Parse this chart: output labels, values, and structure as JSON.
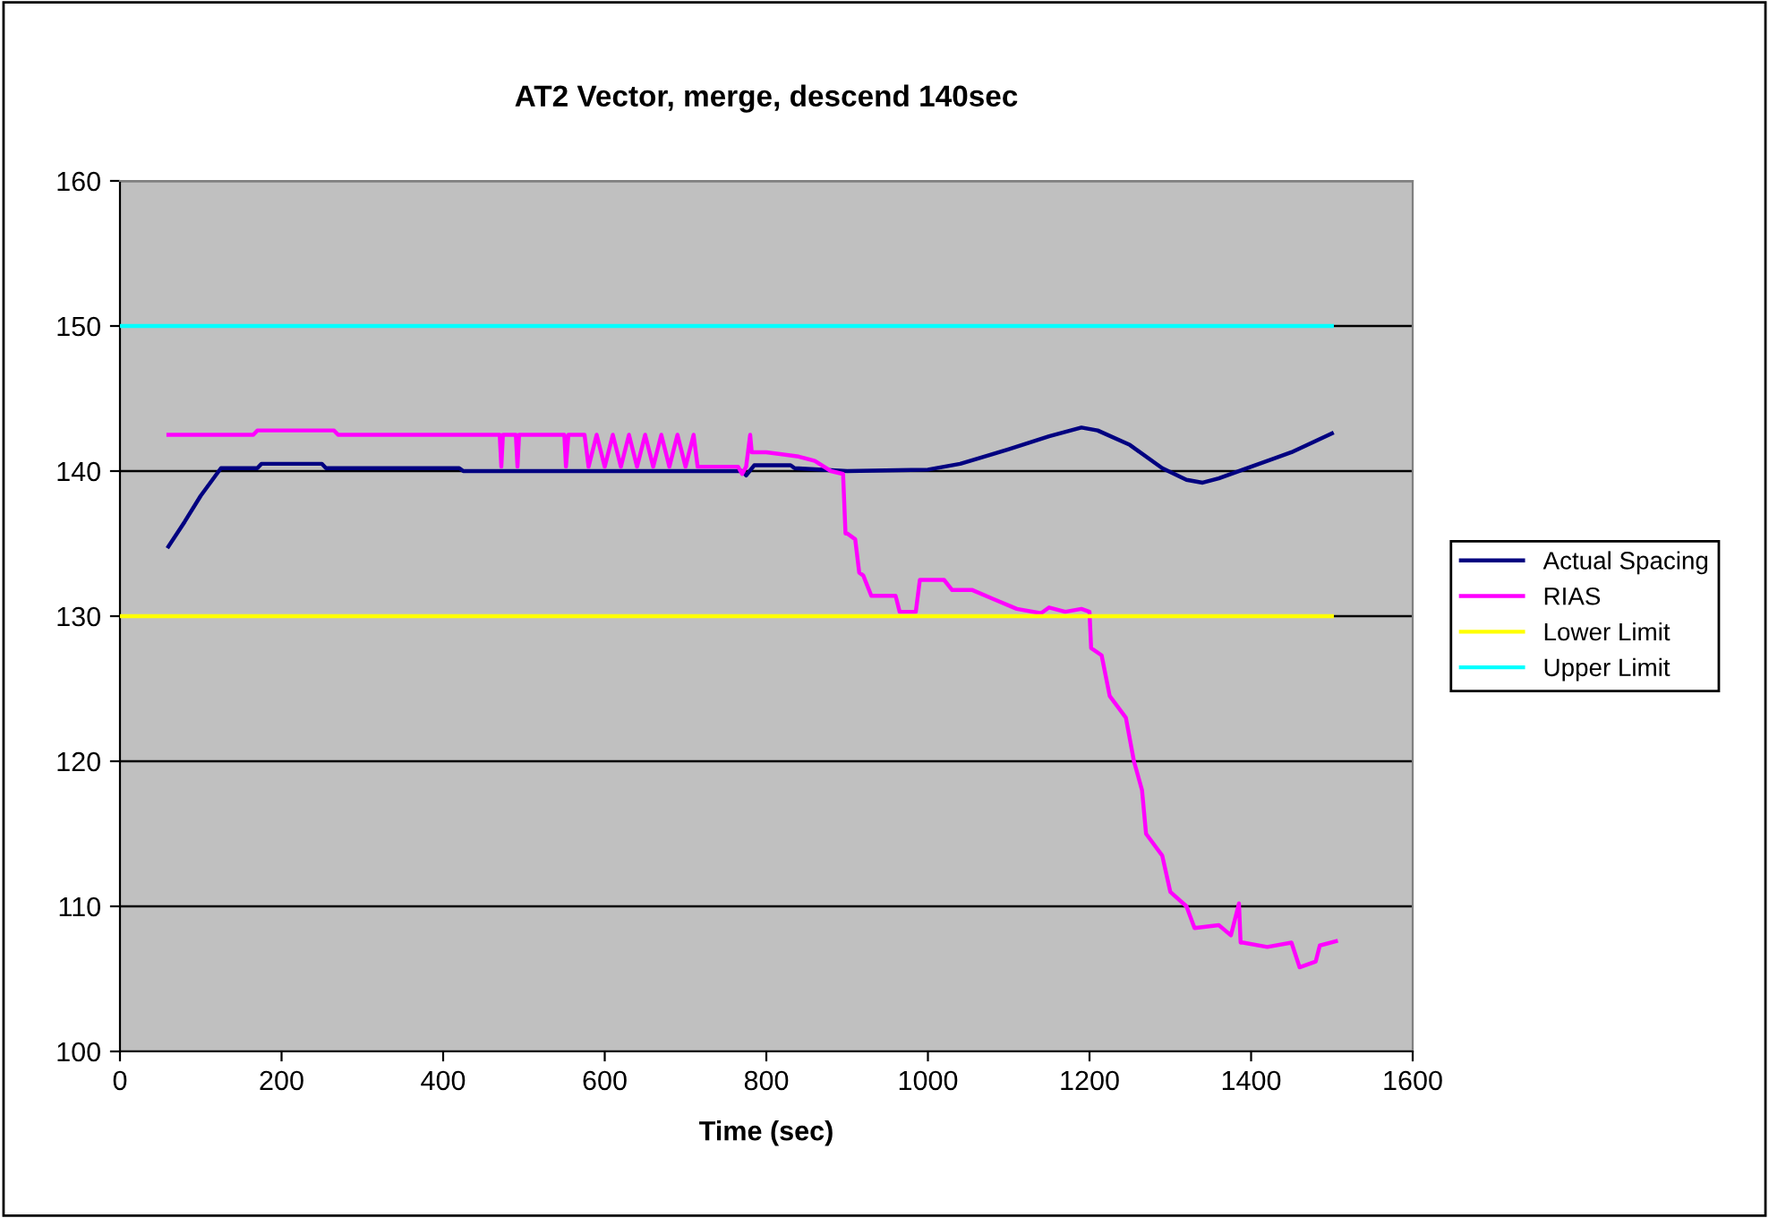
{
  "chart_data": {
    "type": "line",
    "title": "AT2 Vector, merge, descend 140sec",
    "xlabel": "Time (sec)",
    "xlim": [
      0,
      1600
    ],
    "xticks": [
      0,
      200,
      400,
      600,
      800,
      1000,
      1200,
      1400,
      1600
    ],
    "ylim": [
      100,
      160
    ],
    "yticks": [
      100,
      110,
      120,
      130,
      140,
      150,
      160
    ],
    "grid": "y",
    "legend": "right",
    "marker": "none",
    "line_style": "solid",
    "series": [
      {
        "name": "Actual Spacing",
        "color": "#000080",
        "x": [
          60,
          80,
          100,
          125,
          170,
          175,
          250,
          255,
          420,
          425,
          770,
          775,
          785,
          830,
          835,
          900,
          1000,
          1040,
          1100,
          1150,
          1190,
          1210,
          1250,
          1290,
          1320,
          1340,
          1360,
          1400,
          1450,
          1500
        ],
        "values": [
          134.8,
          136.5,
          138.3,
          140.2,
          140.2,
          140.5,
          140.5,
          140.2,
          140.2,
          140,
          140,
          139.7,
          140.4,
          140.4,
          140.2,
          140,
          140.1,
          140.5,
          141.5,
          142.4,
          143,
          142.8,
          141.8,
          140.2,
          139.4,
          139.2,
          139.5,
          140.3,
          141.3,
          142.6
        ]
      },
      {
        "name": "RIAS",
        "color": "#ff00ff",
        "x": [
          60,
          165,
          170,
          265,
          270,
          470,
          472,
          474,
          490,
          492,
          494,
          550,
          552,
          555,
          575,
          580,
          590,
          600,
          610,
          620,
          630,
          640,
          650,
          660,
          670,
          680,
          690,
          700,
          710,
          715,
          765,
          770,
          775,
          780,
          782,
          800,
          840,
          860,
          880,
          895,
          898,
          900,
          910,
          915,
          920,
          930,
          960,
          965,
          985,
          990,
          1020,
          1030,
          1055,
          1080,
          1110,
          1140,
          1150,
          1170,
          1190,
          1200,
          1202,
          1215,
          1225,
          1245,
          1255,
          1265,
          1270,
          1290,
          1300,
          1320,
          1330,
          1360,
          1375,
          1385,
          1387,
          1390,
          1420,
          1450,
          1460,
          1480,
          1485,
          1505
        ],
        "values": [
          142.5,
          142.5,
          142.8,
          142.8,
          142.5,
          142.5,
          140.3,
          142.5,
          142.5,
          140.3,
          142.5,
          142.5,
          140.3,
          142.5,
          142.5,
          140.3,
          142.5,
          140.3,
          142.5,
          140.3,
          142.5,
          140.3,
          142.5,
          140.3,
          142.5,
          140.3,
          142.5,
          140.3,
          142.5,
          140.3,
          140.3,
          139.8,
          140.3,
          142.5,
          141.3,
          141.3,
          141,
          140.7,
          140,
          139.8,
          135.7,
          135.7,
          135.3,
          133,
          132.8,
          131.4,
          131.4,
          130.3,
          130.3,
          132.5,
          132.5,
          131.8,
          131.8,
          131.2,
          130.5,
          130.2,
          130.6,
          130.3,
          130.5,
          130.3,
          127.8,
          127.3,
          124.5,
          123,
          120,
          118,
          115,
          113.5,
          111,
          110,
          108.5,
          108.7,
          108,
          110.2,
          107.5,
          107.5,
          107.2,
          107.5,
          105.8,
          106.2,
          107.3,
          107.6
        ]
      },
      {
        "name": "Lower Limit",
        "color": "#ffff00",
        "x": [
          0,
          1500
        ],
        "values": [
          130,
          130
        ]
      },
      {
        "name": "Upper Limit",
        "color": "#00ffff",
        "x": [
          0,
          1500
        ],
        "values": [
          150,
          150
        ]
      }
    ]
  }
}
